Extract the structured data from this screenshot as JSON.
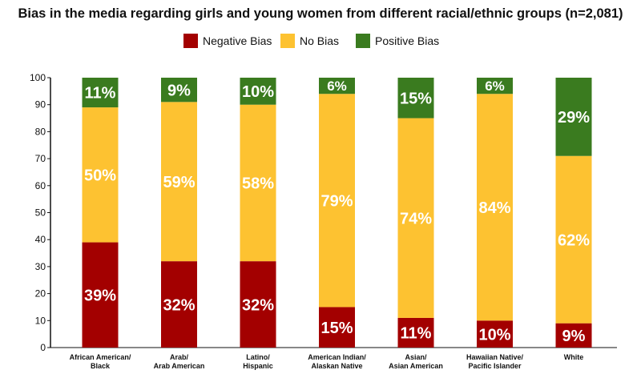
{
  "chart_data": {
    "type": "bar",
    "stacked": true,
    "title": "Bias in the media regarding girls and young women from different racial/ethnic groups (n=2,081)",
    "categories": [
      [
        "African American/",
        "Black"
      ],
      [
        "Arab/",
        "Arab American"
      ],
      [
        "Latino/",
        "Hispanic"
      ],
      [
        "American Indian/",
        "Alaskan Native"
      ],
      [
        "Asian/",
        "Asian American"
      ],
      [
        "Hawaiian Native/",
        "Pacific Islander"
      ],
      [
        "White"
      ]
    ],
    "series": [
      {
        "name": "Negative Bias",
        "color": "#a30000",
        "values": [
          39,
          32,
          32,
          15,
          11,
          10,
          9
        ]
      },
      {
        "name": "No Bias",
        "color": "#fdc231",
        "values": [
          50,
          59,
          58,
          79,
          74,
          84,
          62
        ]
      },
      {
        "name": "Positive Bias",
        "color": "#3a7b1f",
        "values": [
          11,
          9,
          10,
          6,
          15,
          6,
          29
        ]
      }
    ],
    "ylim": [
      0,
      100
    ],
    "yticks": [
      0,
      10,
      20,
      30,
      40,
      50,
      60,
      70,
      80,
      90,
      100
    ],
    "legend_position": "top",
    "grid": false
  }
}
